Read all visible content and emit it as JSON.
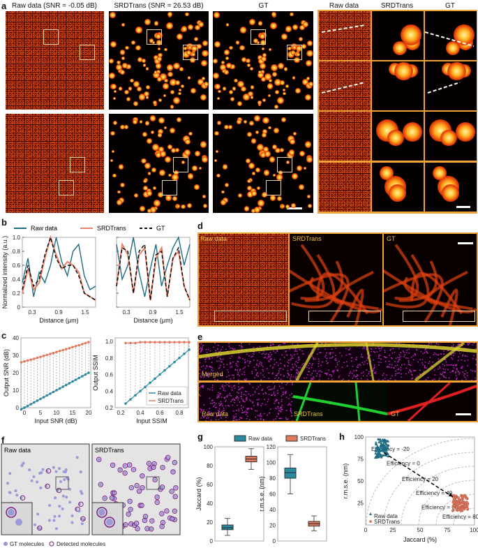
{
  "panel_labels": {
    "a": "a",
    "b": "b",
    "c": "c",
    "d": "d",
    "e": "e",
    "f": "f",
    "g": "g",
    "h": "h"
  },
  "a": {
    "raw": "Raw data (SNR = -0.05 dB)",
    "srd": "SRDTrans (SNR = 26.53 dB)",
    "gt": "GT",
    "zraw": "Raw data",
    "zsrd": "SRDTrans",
    "zgt": "GT"
  },
  "b": {
    "legend": [
      "Raw data",
      "SRDTrans",
      "GT"
    ],
    "ylabel": "Normalized intensity (a.u.)",
    "xlabel": "Distance (μm)",
    "xticks": [
      "0.3",
      "0.9",
      "1.5"
    ],
    "yticks": [
      "0",
      "0.2",
      "0.4",
      "0.6",
      "0.8",
      "1.0"
    ]
  },
  "c": {
    "ylabel1": "Output SNR (dB)",
    "xlabel1": "Input SNR (dB)",
    "xticks1": [
      "0",
      "5",
      "10",
      "15",
      "20"
    ],
    "yticks1": [
      "0",
      "10",
      "20",
      "30",
      "40"
    ],
    "ylabel2": "Output SSIM",
    "xlabel2": "Input SSIM",
    "xticks2": [
      "0.2",
      "0.4",
      "0.6",
      "0.8"
    ],
    "yticks2": [
      "0.2",
      "0.4",
      "0.6",
      "0.8",
      "1.0"
    ],
    "legend": [
      "Raw data",
      "SRDTrans"
    ]
  },
  "d": {
    "raw": "Raw data",
    "srd": "SRDTrans",
    "gt": "GT"
  },
  "e": {
    "merged": "Merged",
    "raw": "Raw data",
    "srd": "SRDTrans",
    "gt": "GT"
  },
  "f": {
    "raw": "Raw data",
    "srd": "SRDTrans",
    "leg_gt": "GT molecules",
    "leg_det": "Detected molecules"
  },
  "g": {
    "legend": [
      "Raw data",
      "SRDTrans"
    ],
    "ylabel1": "Jaccard (%)",
    "yticks1": [
      "0",
      "20",
      "40",
      "60",
      "80",
      "100"
    ],
    "ylabel2": "r.m.s.e. (nm)",
    "yticks2": [
      "0",
      "20",
      "40",
      "60",
      "80",
      "100",
      "120"
    ]
  },
  "h": {
    "ylabel": "r.m.s.e. (nm)",
    "xlabel": "Jaccard (%)",
    "xticks": [
      "0",
      "25",
      "50",
      "75",
      "100"
    ],
    "yticks": [
      "25",
      "50",
      "75",
      "100"
    ],
    "eff": [
      "Efficiency = -20",
      "Efficiency = 0",
      "Efficiency = 20",
      "Efficiency = 40",
      "Efficiency = 60",
      "Efficiency = 80"
    ],
    "legend": [
      "Raw data",
      "SRDTrans"
    ]
  },
  "colors": {
    "raw": "#1f6b80",
    "srd": "#e8826a",
    "gt": "#000000",
    "teal": "#2a8aa0",
    "salmon": "#e07b60"
  },
  "chart_data": [
    {
      "type": "line",
      "panel": "b-left",
      "xlabel": "Distance (μm)",
      "ylabel": "Normalized intensity (a.u.)",
      "ylim": [
        0,
        1
      ],
      "series": [
        {
          "name": "Raw data",
          "values": [
            0.35,
            0.7,
            0.15,
            0.5,
            0.35,
            0.6,
            1.0,
            0.65,
            0.45,
            0.8,
            0.9,
            0.45,
            0.25,
            0.3
          ]
        },
        {
          "name": "SRDTrans",
          "values": [
            0.2,
            0.55,
            0.25,
            0.35,
            0.7,
            1.0,
            0.75,
            0.55,
            0.65,
            0.6,
            0.5,
            0.2,
            0.15,
            0.1
          ]
        },
        {
          "name": "GT",
          "values": [
            0.25,
            0.6,
            0.3,
            0.4,
            0.75,
            1.0,
            0.7,
            0.55,
            0.6,
            0.6,
            0.45,
            0.2,
            0.15,
            0.1
          ]
        }
      ]
    },
    {
      "type": "line",
      "panel": "b-right",
      "xlabel": "Distance (μm)",
      "ylim": [
        0,
        1
      ],
      "series": [
        {
          "name": "Raw data",
          "values": [
            0.9,
            0.4,
            0.6,
            1.0,
            0.5,
            0.15,
            0.55,
            0.9,
            0.3,
            0.6,
            0.85,
            1.0,
            0.6,
            0.9
          ]
        },
        {
          "name": "SRDTrans",
          "values": [
            0.3,
            0.9,
            0.75,
            0.2,
            0.75,
            0.85,
            0.1,
            0.7,
            0.85,
            0.15,
            0.7,
            0.8,
            0.3,
            0.1
          ]
        },
        {
          "name": "GT",
          "values": [
            0.3,
            0.85,
            0.8,
            0.2,
            0.8,
            0.9,
            0.1,
            0.75,
            0.8,
            0.15,
            0.7,
            0.85,
            0.3,
            0.1
          ]
        }
      ]
    },
    {
      "type": "line",
      "panel": "c-left",
      "xlabel": "Input SNR (dB)",
      "ylabel": "Output SNR (dB)",
      "ylim": [
        0,
        40
      ],
      "x": [
        -1,
        0,
        1,
        2,
        3,
        4,
        5,
        6,
        7,
        8,
        9,
        10,
        11,
        12,
        13,
        14,
        15,
        16,
        17,
        18,
        19,
        20
      ],
      "series": [
        {
          "name": "Raw data",
          "values": [
            -1,
            0,
            1,
            2,
            3,
            4,
            5,
            6,
            7,
            8,
            9,
            10,
            11,
            12,
            13,
            14,
            15,
            16,
            17,
            18,
            19,
            20
          ]
        },
        {
          "name": "SRDTrans",
          "values": [
            26,
            26.5,
            27,
            27.5,
            28,
            28.6,
            29.1,
            29.7,
            30.2,
            30.8,
            31.3,
            31.9,
            32.5,
            33,
            33.6,
            34.1,
            34.7,
            35.3,
            35.8,
            36.4,
            37,
            37.6
          ]
        }
      ]
    },
    {
      "type": "line",
      "panel": "c-right",
      "xlabel": "Input SSIM",
      "ylabel": "Output SSIM",
      "ylim": [
        0.2,
        1.0
      ],
      "x": [
        0.25,
        0.3,
        0.35,
        0.4,
        0.45,
        0.5,
        0.55,
        0.6,
        0.65,
        0.7,
        0.75,
        0.8,
        0.85,
        0.9
      ],
      "series": [
        {
          "name": "Raw data",
          "values": [
            0.25,
            0.3,
            0.35,
            0.4,
            0.45,
            0.5,
            0.55,
            0.6,
            0.65,
            0.7,
            0.75,
            0.8,
            0.85,
            0.9
          ]
        },
        {
          "name": "SRDTrans",
          "values": [
            0.98,
            0.98,
            0.98,
            0.99,
            0.99,
            0.99,
            0.99,
            0.99,
            0.99,
            0.99,
            0.99,
            0.99,
            0.99,
            0.99
          ]
        }
      ]
    },
    {
      "type": "box",
      "panel": "g-left",
      "ylabel": "Jaccard (%)",
      "ylim": [
        0,
        100
      ],
      "series": [
        {
          "name": "Raw data",
          "min": 6,
          "q1": 12,
          "median": 14,
          "q3": 17,
          "max": 24
        },
        {
          "name": "SRDTrans",
          "min": 76,
          "q1": 84,
          "median": 87,
          "q3": 90,
          "max": 98
        }
      ]
    },
    {
      "type": "box",
      "panel": "g-right",
      "ylabel": "r.m.s.e. (nm)",
      "ylim": [
        0,
        120
      ],
      "series": [
        {
          "name": "Raw data",
          "min": 60,
          "q1": 80,
          "median": 87,
          "q3": 93,
          "max": 110
        },
        {
          "name": "SRDTrans",
          "min": 13,
          "q1": 19,
          "median": 22,
          "q3": 25,
          "max": 32
        }
      ]
    },
    {
      "type": "scatter",
      "panel": "h",
      "xlabel": "Jaccard (%)",
      "ylabel": "r.m.s.e. (nm)",
      "xlim": [
        0,
        100
      ],
      "ylim": [
        0,
        100
      ],
      "series": [
        {
          "name": "Raw data",
          "center": [
            15,
            87
          ]
        },
        {
          "name": "SRDTrans",
          "center": [
            87,
            25
          ]
        }
      ]
    }
  ]
}
